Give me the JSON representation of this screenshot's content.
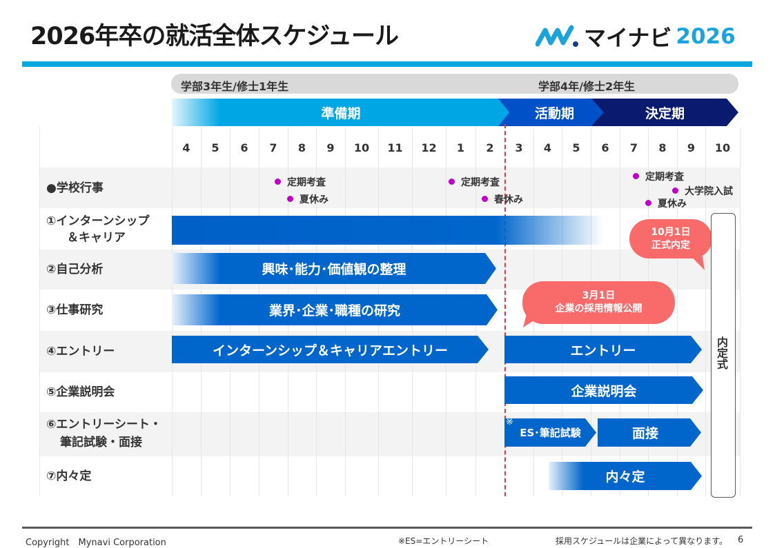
{
  "title": "2026年卒の就活全体スケジュール",
  "logo": {
    "mark": "マイナビ",
    "year": "2026"
  },
  "years": [
    "学部3年生/修士1年生",
    "学部4年/修士2年生"
  ],
  "phases": [
    "準備期",
    "活動期",
    "決定期"
  ],
  "months": [
    "4",
    "5",
    "6",
    "7",
    "8",
    "9",
    "10",
    "11",
    "12",
    "1",
    "2",
    "3",
    "4",
    "5",
    "6",
    "7",
    "8",
    "9",
    "10"
  ],
  "rows": [
    "●学校行事",
    "①インターンシップ",
    "＆キャリア",
    "②自己分析",
    "③仕事研究",
    "④エントリー",
    "⑤企業説明会",
    "⑥エントリーシート・",
    "筆記試験・面接",
    "⑦内々定"
  ],
  "events": [
    "定期考査",
    "夏休み",
    "定期考査",
    "春休み",
    "定期考査",
    "夏休み",
    "大学院入試"
  ],
  "bars": {
    "analysis": "興味･能力･価値観の整理",
    "research": "業界･企業･職種の研究",
    "entry1": "インターンシップ＆キャリアエントリー",
    "entry2": "エントリー",
    "seminar": "企業説明会",
    "es": "ES･筆記試験",
    "es_note": "※",
    "interview": "面接",
    "offer": "内々定"
  },
  "callouts": {
    "oct_date": "10月1日",
    "oct_text": "正式内定",
    "mar_date": "3月1日",
    "mar_text": "企業の採用情報公開"
  },
  "ceremony": "内定式",
  "footer": {
    "copyright": "Copyright　Mynavi Corporation",
    "note": "※ES=エントリーシート",
    "disclaimer": "採用スケジュールは企業によって異なります。",
    "page": "6"
  }
}
